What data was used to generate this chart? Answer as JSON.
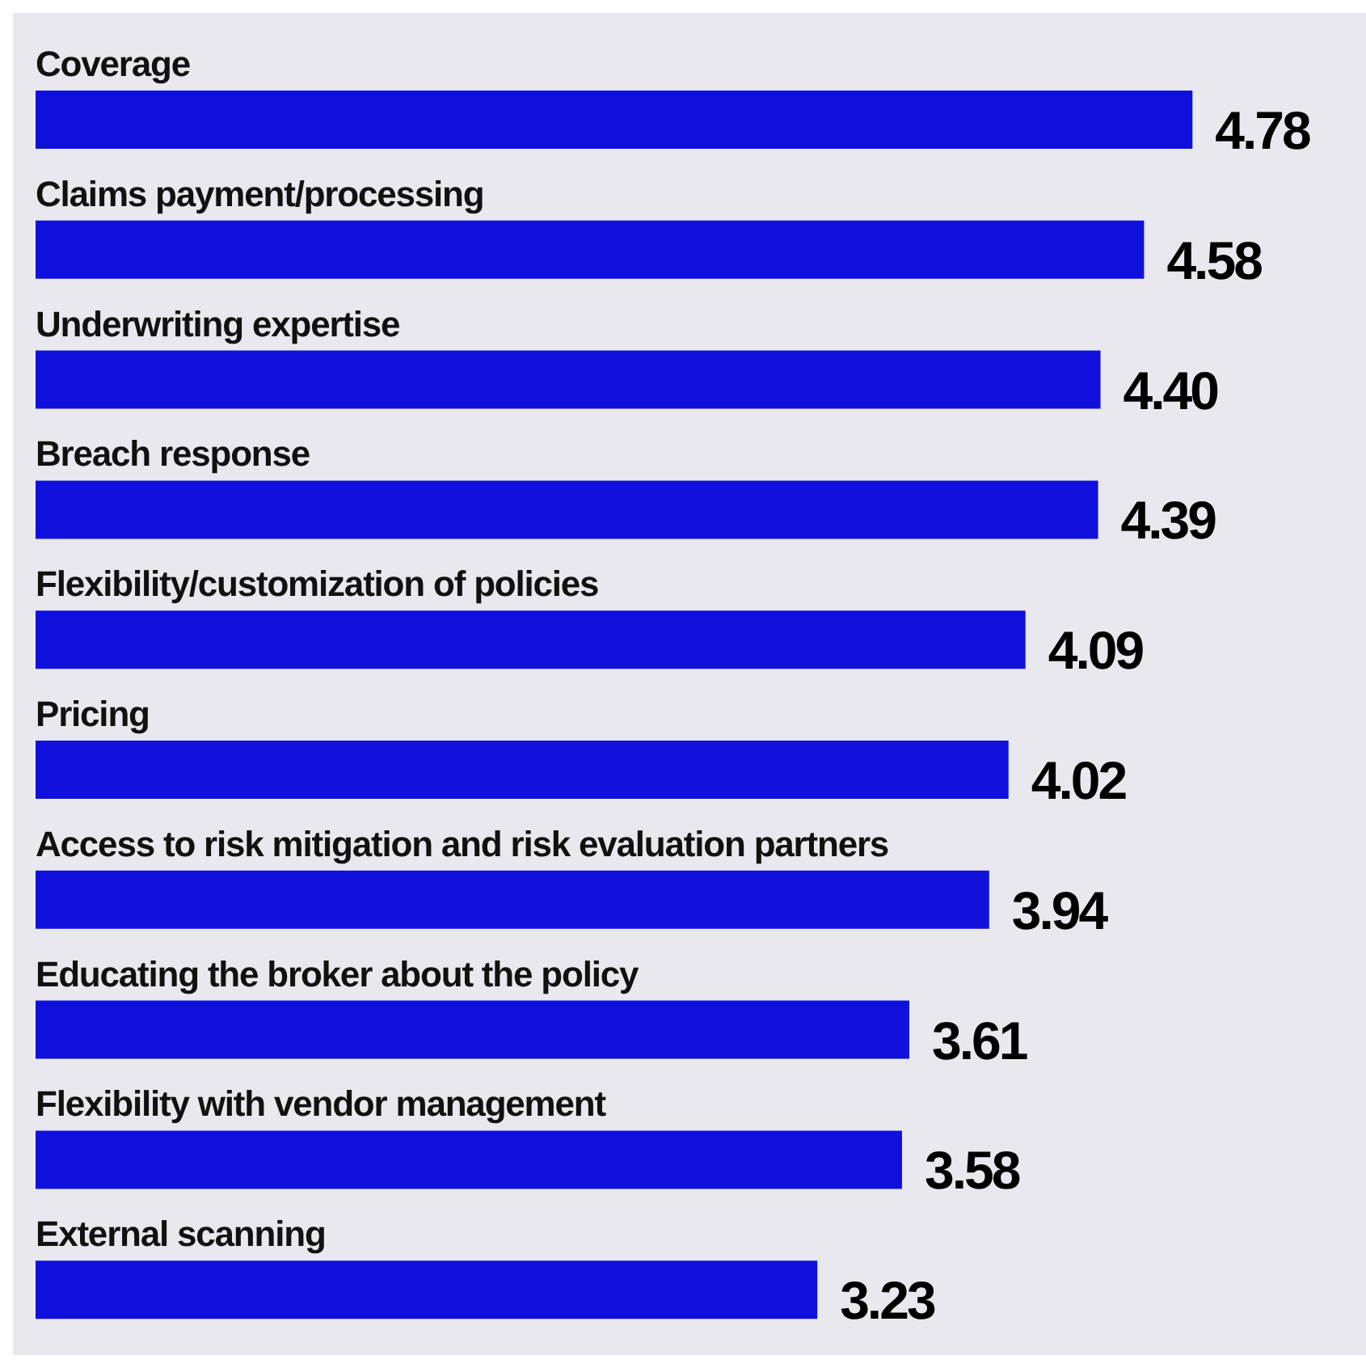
{
  "chart_data": {
    "type": "bar",
    "orientation": "horizontal",
    "categories": [
      "Coverage",
      "Claims payment/processing",
      "Underwriting expertise",
      "Breach response",
      "Flexibility/customization of policies",
      "Pricing",
      "Access to risk mitigation and risk evaluation partners",
      "Educating the broker about the policy",
      "Flexibility with vendor management",
      "External scanning"
    ],
    "values": [
      4.78,
      4.58,
      4.4,
      4.39,
      4.09,
      4.02,
      3.94,
      3.61,
      3.58,
      3.23
    ],
    "value_labels": [
      "4.78",
      "4.58",
      "4.40",
      "4.39",
      "4.09",
      "4.02",
      "3.94",
      "3.61",
      "3.58",
      "3.23"
    ],
    "color": "#1010dc",
    "tick_labels": false
  }
}
